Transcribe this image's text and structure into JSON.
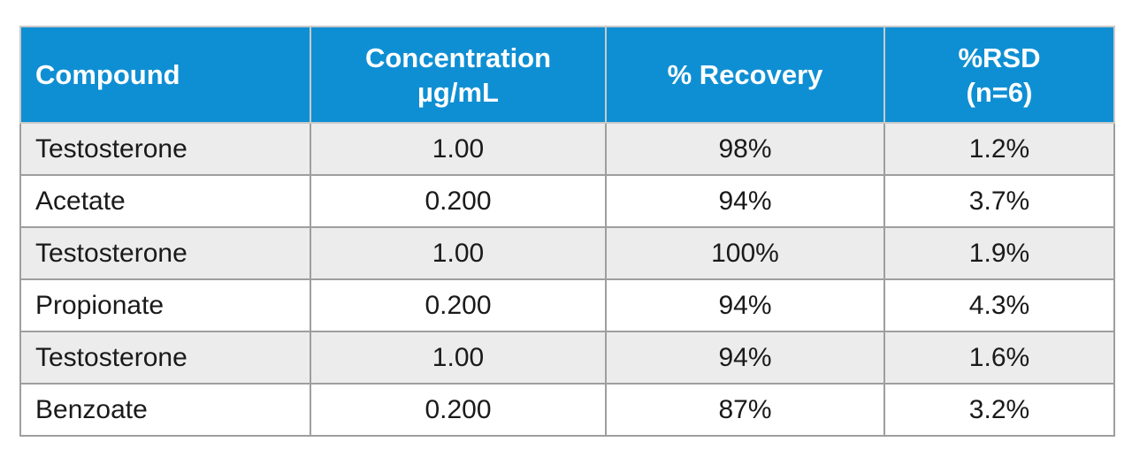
{
  "table": {
    "headers": {
      "compound": "Compound",
      "concentration_line1": "Concentration",
      "concentration_line2": "µg/mL",
      "recovery": "% Recovery",
      "rsd_line1": "%RSD",
      "rsd_line2": "(n=6)"
    },
    "rows": [
      {
        "compound": "Testosterone",
        "concentration": "1.00",
        "recovery": "98%",
        "rsd": "1.2%"
      },
      {
        "compound": "Acetate",
        "concentration": "0.200",
        "recovery": "94%",
        "rsd": "3.7%"
      },
      {
        "compound": "Testosterone",
        "concentration": "1.00",
        "recovery": "100%",
        "rsd": "1.9%"
      },
      {
        "compound": "Propionate",
        "concentration": "0.200",
        "recovery": "94%",
        "rsd": "4.3%"
      },
      {
        "compound": "Testosterone",
        "concentration": "1.00",
        "recovery": "94%",
        "rsd": "1.6%"
      },
      {
        "compound": "Benzoate",
        "concentration": "0.200",
        "recovery": "87%",
        "rsd": "3.2%"
      }
    ]
  },
  "colors": {
    "header_background": "#0f8fd3",
    "header_text": "#ffffff",
    "row_shaded": "#ececec",
    "row_plain": "#ffffff"
  }
}
